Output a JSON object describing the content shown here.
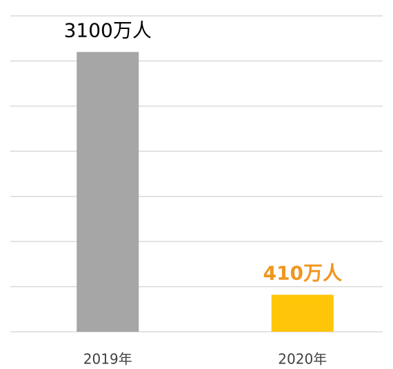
{
  "chart_data": {
    "type": "bar",
    "categories": [
      "2019年",
      "2020年"
    ],
    "values": [
      3100,
      410
    ],
    "value_labels": [
      "3100万人",
      "410万人"
    ],
    "colors": [
      "#a6a6a6",
      "#ffc508"
    ],
    "value_label_colors": [
      "#000000",
      "#f0961e"
    ],
    "ylim": [
      0,
      3500
    ],
    "yticks": [
      0,
      500,
      1000,
      1500,
      2000,
      2500,
      3000,
      3500
    ],
    "grid": true
  }
}
